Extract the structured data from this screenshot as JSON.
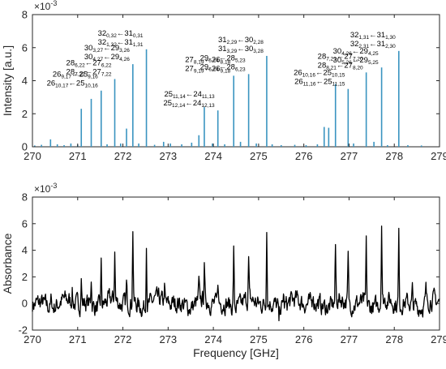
{
  "chart_data": [
    {
      "type": "line",
      "subtype": "stick-spectrum",
      "xlim": [
        270,
        279
      ],
      "ylim": [
        0,
        8
      ],
      "y_exponent_label": "× 10^-3",
      "ylabel": "Intensity [a.u.]",
      "xlabel": "",
      "x_ticks": [
        270,
        271,
        272,
        273,
        274,
        275,
        276,
        277,
        278,
        279
      ],
      "y_ticks": [
        0,
        2,
        4,
        6,
        8
      ],
      "grid": false,
      "line_color": "#3A94C0",
      "lines": [
        {
          "x": 270.05,
          "y": 0.08
        },
        {
          "x": 270.2,
          "y": 0.12
        },
        {
          "x": 270.4,
          "y": 0.45
        },
        {
          "x": 270.55,
          "y": 0.15
        },
        {
          "x": 270.7,
          "y": 0.1
        },
        {
          "x": 270.85,
          "y": 0.2
        },
        {
          "x": 271.0,
          "y": 0.12
        },
        {
          "x": 271.08,
          "y": 2.3
        },
        {
          "x": 271.3,
          "y": 2.9
        },
        {
          "x": 271.52,
          "y": 3.4
        },
        {
          "x": 271.65,
          "y": 0.15
        },
        {
          "x": 271.82,
          "y": 4.1
        },
        {
          "x": 271.95,
          "y": 0.2
        },
        {
          "x": 272.08,
          "y": 1.1
        },
        {
          "x": 272.22,
          "y": 5.0
        },
        {
          "x": 272.35,
          "y": 0.2
        },
        {
          "x": 272.52,
          "y": 5.9
        },
        {
          "x": 272.7,
          "y": 0.12
        },
        {
          "x": 272.9,
          "y": 0.3
        },
        {
          "x": 273.05,
          "y": 0.2
        },
        {
          "x": 273.3,
          "y": 0.15
        },
        {
          "x": 273.52,
          "y": 0.25
        },
        {
          "x": 273.68,
          "y": 0.7
        },
        {
          "x": 273.8,
          "y": 2.4
        },
        {
          "x": 273.98,
          "y": 0.2
        },
        {
          "x": 274.1,
          "y": 2.2
        },
        {
          "x": 274.25,
          "y": 0.15
        },
        {
          "x": 274.45,
          "y": 4.3
        },
        {
          "x": 274.6,
          "y": 0.3
        },
        {
          "x": 274.78,
          "y": 4.4
        },
        {
          "x": 274.95,
          "y": 0.2
        },
        {
          "x": 275.18,
          "y": 5.5
        },
        {
          "x": 275.3,
          "y": 0.15
        },
        {
          "x": 275.5,
          "y": 0.1
        },
        {
          "x": 275.8,
          "y": 0.12
        },
        {
          "x": 276.05,
          "y": 0.1
        },
        {
          "x": 276.3,
          "y": 0.15
        },
        {
          "x": 276.45,
          "y": 1.2
        },
        {
          "x": 276.55,
          "y": 1.15
        },
        {
          "x": 276.7,
          "y": 3.8
        },
        {
          "x": 276.98,
          "y": 3.5
        },
        {
          "x": 277.1,
          "y": 0.2
        },
        {
          "x": 277.38,
          "y": 4.5
        },
        {
          "x": 277.55,
          "y": 0.3
        },
        {
          "x": 277.72,
          "y": 4.8
        },
        {
          "x": 277.85,
          "y": 0.1
        },
        {
          "x": 278.1,
          "y": 5.8
        },
        {
          "x": 278.3,
          "y": 0.1
        },
        {
          "x": 278.6,
          "y": 0.08
        }
      ],
      "annotations": [
        {
          "lines": [
            [
              "26",
              "9,17",
              "25",
              "9,16"
            ],
            [
              "26",
              "10,17",
              "25",
              "10,16"
            ]
          ],
          "x": 271.52,
          "y": 3.4
        },
        {
          "lines": [
            [
              "28",
              "6,22",
              "27",
              "6,22"
            ],
            [
              "28",
              "7,22",
              "27",
              "7,22"
            ]
          ],
          "x": 271.82,
          "y": 4.1
        },
        {
          "lines": [
            [
              "30",
              "3,27",
              "29",
              "3,26"
            ],
            [
              "30",
              "4,27",
              "29",
              "4,26"
            ]
          ],
          "x": 272.22,
          "y": 5.0
        },
        {
          "lines": [
            [
              "32",
              "0,32",
              "31",
              "0,31"
            ],
            [
              "32",
              "1,32",
              "31",
              "1,31"
            ]
          ],
          "x": 272.52,
          "y": 5.9
        },
        {
          "lines": [
            [
              "25",
              "11,14",
              "24",
              "11,13"
            ],
            [
              "25",
              "12,14",
              "24",
              "12,13"
            ]
          ],
          "x": 274.1,
          "y": 2.2
        },
        {
          "lines": [
            [
              "27",
              "8,19",
              "26",
              "8,18"
            ],
            [
              "27",
              "9,19",
              "26",
              "9,18"
            ]
          ],
          "x": 274.45,
          "y": 4.3
        },
        {
          "lines": [
            [
              "29",
              "5,24",
              "28",
              "5,23"
            ],
            [
              "29",
              "6,24",
              "28",
              "6,23"
            ]
          ],
          "x": 274.78,
          "y": 4.4
        },
        {
          "lines": [
            [
              "31",
              "2,29",
              "30",
              "2,28"
            ],
            [
              "31",
              "3,29",
              "30",
              "3,28"
            ]
          ],
          "x": 275.18,
          "y": 5.5
        },
        {
          "lines": [
            [
              "26",
              "10,16",
              "25",
              "10,15"
            ],
            [
              "26",
              "11,16",
              "25",
              "11,15"
            ]
          ],
          "x": 276.98,
          "y": 3.5
        },
        {
          "lines": [
            [
              "28",
              "7,21",
              "27",
              "7,20"
            ],
            [
              "28",
              "8,21",
              "27",
              "8,20"
            ]
          ],
          "x": 277.38,
          "y": 4.5
        },
        {
          "lines": [
            [
              "30",
              "4,26",
              "29",
              "4,25"
            ],
            [
              "30",
              "5,26",
              "29",
              "5,25"
            ]
          ],
          "x": 277.72,
          "y": 4.8
        },
        {
          "lines": [
            [
              "32",
              "1,31",
              "31",
              "1,30"
            ],
            [
              "32",
              "2,31",
              "31",
              "2,30"
            ]
          ],
          "x": 278.1,
          "y": 5.8
        }
      ]
    },
    {
      "type": "line",
      "xlim": [
        270,
        279
      ],
      "ylim": [
        -2,
        8
      ],
      "y_exponent_label": "× 10^-3",
      "ylabel": "Absorbance",
      "xlabel": "Frequency [GHz]",
      "x_ticks": [
        270,
        271,
        272,
        273,
        274,
        275,
        276,
        277,
        278,
        279
      ],
      "y_ticks": [
        -2,
        0,
        2,
        4,
        6,
        8
      ],
      "grid": false,
      "line_color": "#000000",
      "baseline_noise_amplitude": 0.5,
      "peaks": [
        {
          "x": 270.42,
          "y": 0.8
        },
        {
          "x": 270.88,
          "y": 1.0
        },
        {
          "x": 271.08,
          "y": 1.9
        },
        {
          "x": 271.3,
          "y": 2.2
        },
        {
          "x": 271.52,
          "y": 3.1
        },
        {
          "x": 271.82,
          "y": 3.7
        },
        {
          "x": 272.08,
          "y": 1.4
        },
        {
          "x": 272.22,
          "y": 5.7
        },
        {
          "x": 272.52,
          "y": 5.0
        },
        {
          "x": 272.92,
          "y": 1.2
        },
        {
          "x": 273.68,
          "y": 1.3
        },
        {
          "x": 273.8,
          "y": 2.6
        },
        {
          "x": 274.1,
          "y": 1.9
        },
        {
          "x": 274.45,
          "y": 4.3
        },
        {
          "x": 274.78,
          "y": 3.0
        },
        {
          "x": 275.18,
          "y": 5.8
        },
        {
          "x": 275.45,
          "y": -1.2
        },
        {
          "x": 275.55,
          "y": 1.0
        },
        {
          "x": 276.2,
          "y": 1.0
        },
        {
          "x": 276.7,
          "y": 4.1
        },
        {
          "x": 276.98,
          "y": 3.4
        },
        {
          "x": 277.38,
          "y": 4.5
        },
        {
          "x": 277.72,
          "y": 6.2
        },
        {
          "x": 278.1,
          "y": 5.1
        },
        {
          "x": 278.4,
          "y": 1.0
        },
        {
          "x": 278.7,
          "y": 0.9
        }
      ]
    }
  ]
}
